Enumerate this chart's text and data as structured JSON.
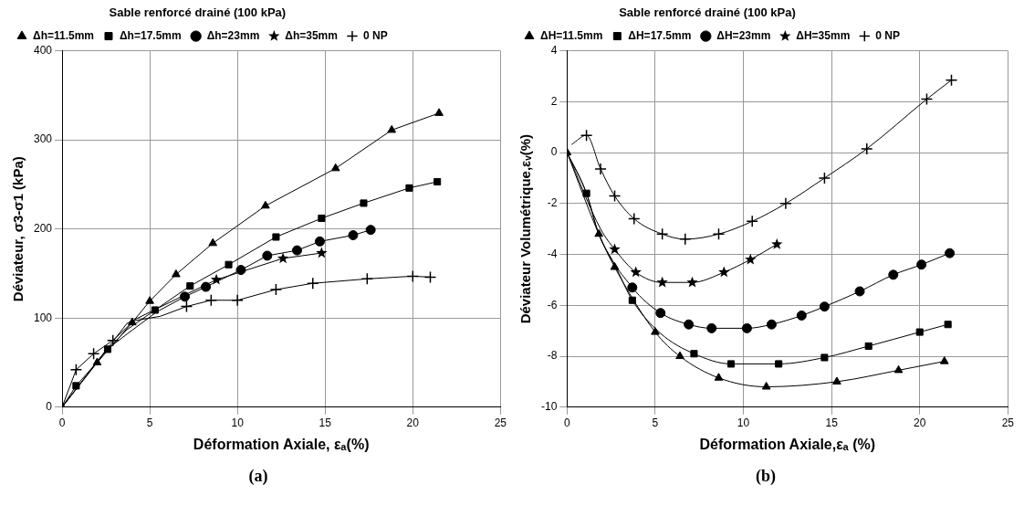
{
  "chart_data": [
    {
      "type": "line",
      "title": "(a)",
      "xlabel": "Déformation Axiale, εₐ(%)",
      "ylabel": "Déviateur, σ3-σ1 (kPa)",
      "legend_title": "Sable renforcé drainé (100 kPa)",
      "legend": "top left",
      "grid": true,
      "xlim": [
        0,
        25
      ],
      "xticks": [
        0,
        5,
        10,
        15,
        20,
        25
      ],
      "ylim": [
        0,
        400
      ],
      "yticks": [
        0,
        100,
        200,
        300,
        400
      ],
      "series": [
        {
          "name": "Δh=11.5mm",
          "color": "#000000",
          "marker": "triangle",
          "x": [
            0,
            2,
            4,
            5.0,
            6.5,
            8.6,
            11.6,
            15.6,
            18.8,
            21.5
          ],
          "values": [
            0,
            50,
            95,
            119,
            149,
            184,
            226,
            268,
            311,
            330
          ]
        },
        {
          "name": "Δh=17.5mm",
          "color": "#000000",
          "marker": "square",
          "x": [
            0,
            0.8,
            1.7,
            2.6,
            3.7,
            5.3,
            7.3,
            9.5,
            12.2,
            14.8,
            17.2,
            19.8,
            21.4
          ],
          "values": [
            0,
            24,
            44,
            65,
            87,
            109,
            136,
            160,
            191,
            212,
            229,
            246,
            253
          ]
        },
        {
          "name": "Δh=23mm",
          "color": "#000000",
          "marker": "circle",
          "x": [
            0,
            2.5,
            3.7,
            5.4,
            7.0,
            8.2,
            10.2,
            11.7,
            13.4,
            14.7,
            16.6,
            17.6
          ],
          "values": [
            0,
            64,
            82,
            107,
            124,
            135,
            154,
            170,
            176,
            186,
            193,
            199
          ]
        },
        {
          "name": "Δh=35mm",
          "color": "#000000",
          "marker": "star",
          "x": [
            0,
            3.7,
            7.0,
            8.8,
            12.6,
            14.8
          ],
          "values": [
            0,
            94,
            126,
            143,
            167,
            173
          ]
        },
        {
          "name": "0 NP",
          "color": "#000000",
          "marker": "cross",
          "x": [
            0,
            0.8,
            1.8,
            2.9,
            4.1,
            5.6,
            7.1,
            8.5,
            10.0,
            12.2,
            14.3,
            17.4,
            20.0,
            21.0
          ],
          "values": [
            0,
            42,
            60,
            75,
            97,
            102,
            113,
            120,
            120,
            132,
            139,
            144,
            147,
            146
          ]
        }
      ]
    },
    {
      "type": "line",
      "title": "(b)",
      "xlabel": "Déformation Axiale,εₐ (%)",
      "ylabel": "Déviateur Volumétrique,εᵥ(%)",
      "legend_title": "Sable renforcé drainé (100 kPa)",
      "legend": "top left",
      "grid": true,
      "xlim": [
        0,
        25
      ],
      "xticks": [
        0,
        5,
        10,
        15,
        20,
        25
      ],
      "ylim": [
        -10,
        4
      ],
      "yticks": [
        -10,
        -8,
        -6,
        -4,
        -2,
        0,
        2,
        4
      ],
      "series": [
        {
          "name": "ΔH=11.5mm",
          "color": "#000000",
          "marker": "triangle",
          "x": [
            0,
            1.8,
            2.7,
            5.0,
            6.4,
            8.6,
            11.3,
            15.3,
            18.8,
            21.4
          ],
          "values": [
            0,
            -3.2,
            -4.5,
            -7.05,
            -8.0,
            -8.85,
            -9.2,
            -9.0,
            -8.55,
            -8.2
          ]
        },
        {
          "name": "ΔH=17.5mm",
          "color": "#000000",
          "marker": "square",
          "x": [
            0,
            1.1,
            1.8,
            2.7,
            3.7,
            5.3,
            7.2,
            9.3,
            12.0,
            14.6,
            17.1,
            20.0,
            21.6
          ],
          "values": [
            0,
            -1.6,
            -3.2,
            -4.4,
            -5.8,
            -7.1,
            -7.9,
            -8.3,
            -8.3,
            -8.05,
            -7.6,
            -7.05,
            -6.75
          ]
        },
        {
          "name": "ΔH=23mm",
          "color": "#000000",
          "marker": "circle",
          "x": [
            0,
            1.1,
            1.8,
            3.7,
            5.3,
            6.9,
            8.2,
            10.2,
            11.6,
            13.3,
            14.6,
            16.6,
            18.5,
            20.1,
            21.7
          ],
          "values": [
            0,
            -1.6,
            -3.2,
            -5.3,
            -6.3,
            -6.75,
            -6.9,
            -6.9,
            -6.75,
            -6.4,
            -6.05,
            -5.45,
            -4.8,
            -4.4,
            -3.95
          ]
        },
        {
          "name": "ΔH=35mm",
          "color": "#000000",
          "marker": "star",
          "x": [
            0,
            1.9,
            2.7,
            3.9,
            5.4,
            7.1,
            8.9,
            10.4,
            11.9
          ],
          "values": [
            0,
            -3.0,
            -3.8,
            -4.7,
            -5.1,
            -5.1,
            -4.7,
            -4.2,
            -3.6
          ]
        },
        {
          "name": "0 NP",
          "color": "#000000",
          "marker": "cross",
          "x": [
            0.26,
            1.1,
            1.9,
            2.7,
            3.8,
            5.4,
            6.7,
            8.6,
            10.5,
            12.4,
            14.6,
            17.0,
            20.4,
            21.8
          ],
          "values": [
            0.32,
            0.68,
            -0.64,
            -1.7,
            -2.6,
            -3.2,
            -3.4,
            -3.2,
            -2.7,
            -2.0,
            -1.0,
            0.15,
            2.1,
            2.85
          ]
        }
      ]
    }
  ]
}
